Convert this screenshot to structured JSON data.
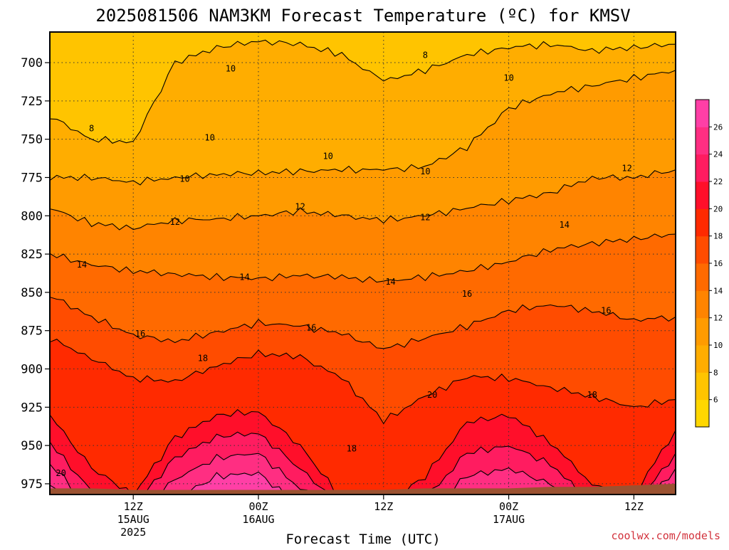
{
  "chart_data": {
    "type": "heatmap",
    "title": "2025081506 NAM3KM Forecast Temperature (ºC) for KMSV",
    "xlabel": "Forecast Time (UTC)",
    "ylabel": "",
    "y_axis": {
      "quantity": "pressure (hPa)",
      "inverted": true,
      "range": [
        982,
        680
      ],
      "ticks": [
        700,
        725,
        750,
        775,
        800,
        825,
        850,
        875,
        900,
        925,
        950,
        975
      ]
    },
    "x_axis": {
      "range_hours": [
        0,
        45
      ],
      "ticks": [
        {
          "hour": 6,
          "labels": [
            "12Z",
            "15AUG",
            "2025"
          ]
        },
        {
          "hour": 15,
          "labels": [
            "00Z",
            "16AUG"
          ]
        },
        {
          "hour": 24,
          "labels": [
            "12Z"
          ]
        },
        {
          "hour": 33,
          "labels": [
            "00Z",
            "17AUG"
          ]
        },
        {
          "hour": 42,
          "labels": [
            "12Z"
          ]
        }
      ]
    },
    "grid": true,
    "colorbar": {
      "placement": "right",
      "levels": [
        4,
        6,
        8,
        10,
        12,
        14,
        16,
        18,
        20,
        22,
        24,
        26,
        28
      ],
      "tick_labels": [
        "6",
        "8",
        "10",
        "12",
        "14",
        "16",
        "18",
        "20",
        "22",
        "24",
        "26"
      ],
      "colors": [
        "#ffd700",
        "#ffc400",
        "#ffad00",
        "#ff9b00",
        "#ff8400",
        "#ff6a00",
        "#ff4c00",
        "#ff2a00",
        "#ff0f2a",
        "#ff1c60",
        "#ff2e82",
        "#ff3fa6"
      ]
    },
    "forecast_hours": [
      0,
      3,
      6,
      9,
      12,
      15,
      18,
      21,
      24,
      27,
      30,
      33,
      36,
      39,
      42,
      45
    ],
    "isotherm_pressures": {
      "8": [
        735,
        750,
        752,
        700,
        690,
        686,
        688,
        695,
        712,
        705,
        695,
        690,
        688,
        692,
        690,
        688
      ],
      "10": [
        775,
        775,
        778,
        775,
        773,
        772,
        771,
        770,
        770,
        768,
        755,
        730,
        720,
        715,
        710,
        705
      ],
      "12": [
        795,
        805,
        808,
        803,
        802,
        800,
        797,
        800,
        803,
        800,
        795,
        790,
        785,
        775,
        775,
        770
      ],
      "14": [
        825,
        832,
        836,
        838,
        840,
        841,
        839,
        840,
        843,
        840,
        836,
        830,
        822,
        818,
        815,
        812
      ],
      "16": [
        852,
        866,
        878,
        882,
        876,
        870,
        872,
        877,
        887,
        880,
        872,
        862,
        858,
        862,
        868,
        866
      ],
      "18": [
        880,
        893,
        906,
        908,
        898,
        890,
        892,
        906,
        934,
        918,
        905,
        906,
        912,
        918,
        925,
        920
      ],
      "20": [
        930,
        965,
        982,
        945,
        930,
        928,
        950,
        985,
        990,
        970,
        935,
        930,
        948,
        975,
        982,
        940
      ],
      "22": [
        948,
        980,
        990,
        958,
        944,
        942,
        965,
        990,
        995,
        985,
        955,
        950,
        962,
        988,
        990,
        955
      ],
      "24": [
        962,
        990,
        995,
        972,
        958,
        955,
        978,
        995,
        998,
        995,
        970,
        965,
        975,
        995,
        995,
        965
      ],
      "26": [
        975,
        995,
        998,
        985,
        970,
        968,
        990,
        998,
        999,
        998,
        985,
        980,
        990,
        998,
        998,
        975
      ]
    },
    "contour_labels": [
      {
        "value": "8",
        "hour": 3,
        "pressure": 743
      },
      {
        "value": "8",
        "hour": 27,
        "pressure": 695
      },
      {
        "value": "10",
        "hour": 13,
        "pressure": 704
      },
      {
        "value": "10",
        "hour": 11.5,
        "pressure": 749
      },
      {
        "value": "10",
        "hour": 9.7,
        "pressure": 776
      },
      {
        "value": "10",
        "hour": 20,
        "pressure": 761
      },
      {
        "value": "10",
        "hour": 27,
        "pressure": 771
      },
      {
        "value": "10",
        "hour": 33,
        "pressure": 710
      },
      {
        "value": "12",
        "hour": 9,
        "pressure": 804
      },
      {
        "value": "12",
        "hour": 18,
        "pressure": 794
      },
      {
        "value": "12",
        "hour": 27,
        "pressure": 801
      },
      {
        "value": "12",
        "hour": 41.5,
        "pressure": 769
      },
      {
        "value": "14",
        "hour": 2.3,
        "pressure": 832
      },
      {
        "value": "14",
        "hour": 14,
        "pressure": 840
      },
      {
        "value": "14",
        "hour": 24.5,
        "pressure": 843
      },
      {
        "value": "14",
        "hour": 37,
        "pressure": 806
      },
      {
        "value": "16",
        "hour": 6.5,
        "pressure": 877
      },
      {
        "value": "16",
        "hour": 18.8,
        "pressure": 873
      },
      {
        "value": "16",
        "hour": 30,
        "pressure": 851
      },
      {
        "value": "16",
        "hour": 40,
        "pressure": 862
      },
      {
        "value": "18",
        "hour": 11,
        "pressure": 893
      },
      {
        "value": "18",
        "hour": 21.7,
        "pressure": 952
      },
      {
        "value": "18",
        "hour": 39,
        "pressure": 917
      },
      {
        "value": "20",
        "hour": 0.8,
        "pressure": 968
      },
      {
        "value": "20",
        "hour": 27.5,
        "pressure": 917
      }
    ],
    "terrain": {
      "color": "#9b5231",
      "surface_pressure": [
        978,
        978,
        979,
        979,
        979,
        979,
        979,
        979,
        979,
        978,
        978,
        978,
        977,
        977,
        976,
        975
      ]
    }
  },
  "credit": "coolwx.com/models"
}
